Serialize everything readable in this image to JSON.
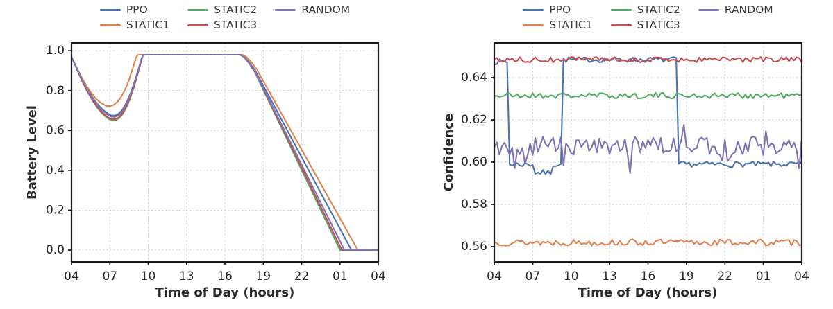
{
  "figure": {
    "background": "#ffffff",
    "spine_color": "#1a1a1a",
    "grid_color": "#d3d3dd",
    "text_color": "#2b2b2b"
  },
  "chart_data": [
    {
      "id": "battery",
      "type": "line",
      "title": "",
      "xlabel": "Time of Day (hours)",
      "ylabel": "Battery Level",
      "x_range_hours": [
        4,
        28
      ],
      "x_tick_hours": [
        4,
        7,
        10,
        13,
        16,
        19,
        22,
        25,
        28
      ],
      "x_tick_labels": [
        "04",
        "07",
        "10",
        "13",
        "16",
        "19",
        "22",
        "01",
        "04"
      ],
      "ylim": [
        -0.059,
        1.039
      ],
      "y_ticks": [
        0.0,
        0.2,
        0.4,
        0.6,
        0.8,
        1.0
      ],
      "y_tick_labels": [
        "0.0",
        "0.2",
        "0.4",
        "0.6",
        "0.8",
        "1.0"
      ],
      "grid": true,
      "legend_position": "above",
      "series": [
        {
          "name": "PPO",
          "color": "#4C72B0",
          "points": [
            [
              4,
              0.97
            ],
            [
              4.4,
              0.914
            ],
            [
              4.8,
              0.86
            ],
            [
              5.2,
              0.812
            ],
            [
              5.6,
              0.77
            ],
            [
              6.0,
              0.735
            ],
            [
              6.4,
              0.707
            ],
            [
              6.8,
              0.686
            ],
            [
              7.1,
              0.676
            ],
            [
              7.4,
              0.675
            ],
            [
              7.7,
              0.685
            ],
            [
              8.0,
              0.706
            ],
            [
              8.3,
              0.74
            ],
            [
              8.6,
              0.783
            ],
            [
              8.9,
              0.838
            ],
            [
              9.2,
              0.9
            ],
            [
              9.45,
              0.956
            ],
            [
              9.6,
              0.979
            ],
            [
              9.75,
              0.98
            ],
            [
              17.25,
              0.98
            ],
            [
              17.55,
              0.968
            ],
            [
              17.95,
              0.938
            ],
            [
              18.35,
              0.903
            ],
            [
              25.9,
              0.0
            ],
            [
              28,
              0.0
            ]
          ]
        },
        {
          "name": "STATIC1",
          "color": "#DD8452",
          "points": [
            [
              4,
              0.97
            ],
            [
              4.4,
              0.916
            ],
            [
              4.8,
              0.866
            ],
            [
              5.2,
              0.822
            ],
            [
              5.6,
              0.784
            ],
            [
              6.0,
              0.754
            ],
            [
              6.4,
              0.734
            ],
            [
              6.7,
              0.724
            ],
            [
              7.0,
              0.722
            ],
            [
              7.3,
              0.728
            ],
            [
              7.6,
              0.744
            ],
            [
              7.9,
              0.77
            ],
            [
              8.2,
              0.806
            ],
            [
              8.5,
              0.854
            ],
            [
              8.8,
              0.914
            ],
            [
              9.05,
              0.966
            ],
            [
              9.2,
              0.98
            ],
            [
              17.4,
              0.98
            ],
            [
              17.7,
              0.968
            ],
            [
              18.1,
              0.94
            ],
            [
              18.5,
              0.906
            ],
            [
              26.4,
              0.0
            ],
            [
              28,
              0.0
            ]
          ]
        },
        {
          "name": "STATIC2",
          "color": "#55A868",
          "points": [
            [
              4,
              0.97
            ],
            [
              4.4,
              0.91
            ],
            [
              4.8,
              0.852
            ],
            [
              5.2,
              0.8
            ],
            [
              5.6,
              0.755
            ],
            [
              6.0,
              0.716
            ],
            [
              6.4,
              0.685
            ],
            [
              6.8,
              0.662
            ],
            [
              7.1,
              0.651
            ],
            [
              7.4,
              0.65
            ],
            [
              7.7,
              0.66
            ],
            [
              8.0,
              0.682
            ],
            [
              8.3,
              0.716
            ],
            [
              8.6,
              0.762
            ],
            [
              8.9,
              0.82
            ],
            [
              9.2,
              0.888
            ],
            [
              9.45,
              0.948
            ],
            [
              9.6,
              0.978
            ],
            [
              9.75,
              0.98
            ],
            [
              17.2,
              0.98
            ],
            [
              17.5,
              0.968
            ],
            [
              17.9,
              0.936
            ],
            [
              18.3,
              0.898
            ],
            [
              25.0,
              0.0
            ],
            [
              28,
              0.0
            ]
          ]
        },
        {
          "name": "STATIC3",
          "color": "#C44E52",
          "points": [
            [
              4,
              0.97
            ],
            [
              4.4,
              0.911
            ],
            [
              4.8,
              0.854
            ],
            [
              5.2,
              0.803
            ],
            [
              5.6,
              0.758
            ],
            [
              6.0,
              0.72
            ],
            [
              6.4,
              0.69
            ],
            [
              6.8,
              0.668
            ],
            [
              7.1,
              0.657
            ],
            [
              7.4,
              0.656
            ],
            [
              7.7,
              0.666
            ],
            [
              8.0,
              0.688
            ],
            [
              8.3,
              0.722
            ],
            [
              8.6,
              0.768
            ],
            [
              8.9,
              0.826
            ],
            [
              9.2,
              0.892
            ],
            [
              9.45,
              0.95
            ],
            [
              9.6,
              0.978
            ],
            [
              9.75,
              0.98
            ],
            [
              17.2,
              0.98
            ],
            [
              17.5,
              0.968
            ],
            [
              17.9,
              0.937
            ],
            [
              18.3,
              0.9
            ],
            [
              25.15,
              0.0
            ],
            [
              28,
              0.0
            ]
          ]
        },
        {
          "name": "RANDOM",
          "color": "#8172B3",
          "points": [
            [
              4,
              0.97
            ],
            [
              4.4,
              0.913
            ],
            [
              4.8,
              0.858
            ],
            [
              5.2,
              0.809
            ],
            [
              5.6,
              0.766
            ],
            [
              6.0,
              0.73
            ],
            [
              6.4,
              0.701
            ],
            [
              6.8,
              0.68
            ],
            [
              7.1,
              0.669
            ],
            [
              7.4,
              0.668
            ],
            [
              7.7,
              0.678
            ],
            [
              8.0,
              0.7
            ],
            [
              8.3,
              0.734
            ],
            [
              8.6,
              0.778
            ],
            [
              8.9,
              0.834
            ],
            [
              9.2,
              0.898
            ],
            [
              9.45,
              0.954
            ],
            [
              9.6,
              0.979
            ],
            [
              9.75,
              0.98
            ],
            [
              17.2,
              0.98
            ],
            [
              17.5,
              0.968
            ],
            [
              17.9,
              0.938
            ],
            [
              18.3,
              0.902
            ],
            [
              25.35,
              0.0
            ],
            [
              28,
              0.0
            ]
          ]
        }
      ]
    },
    {
      "id": "confidence",
      "type": "line",
      "title": "",
      "xlabel": "Time of Day (hours)",
      "ylabel": "Confidence",
      "x_range_hours": [
        4,
        28
      ],
      "x_tick_hours": [
        4,
        7,
        10,
        13,
        16,
        19,
        22,
        25,
        28
      ],
      "x_tick_labels": [
        "04",
        "07",
        "10",
        "13",
        "16",
        "19",
        "22",
        "01",
        "04"
      ],
      "ylim": [
        0.5528,
        0.6564
      ],
      "y_ticks": [
        0.56,
        0.58,
        0.6,
        0.62,
        0.64
      ],
      "y_tick_labels": [
        "0.56",
        "0.58",
        "0.60",
        "0.62",
        "0.64"
      ],
      "grid": true,
      "legend_position": "above",
      "sample_step_hours": 0.2,
      "series": [
        {
          "name": "PPO",
          "color": "#4C72B0",
          "seed": 7,
          "noise_amp": 0.0013,
          "levels": [
            {
              "from": 4.0,
              "to": 5.0,
              "value": 0.6475
            },
            {
              "from": 5.0,
              "to": 7.0,
              "value": 0.599
            },
            {
              "from": 7.0,
              "to": 8.4,
              "value": 0.595
            },
            {
              "from": 8.4,
              "to": 9.2,
              "value": 0.599
            },
            {
              "from": 9.2,
              "to": 18.2,
              "value": 0.6485
            },
            {
              "from": 18.2,
              "to": 28.0,
              "value": 0.599
            }
          ]
        },
        {
          "name": "STATIC1",
          "color": "#DD8452",
          "seed": 13,
          "noise_amp": 0.0015,
          "levels": [
            {
              "from": 4.0,
              "to": 28.0,
              "value": 0.562
            }
          ]
        },
        {
          "name": "STATIC2",
          "color": "#55A868",
          "seed": 21,
          "noise_amp": 0.0014,
          "levels": [
            {
              "from": 4.0,
              "to": 28.0,
              "value": 0.6315
            }
          ]
        },
        {
          "name": "STATIC3",
          "color": "#C44E52",
          "seed": 34,
          "noise_amp": 0.0013,
          "levels": [
            {
              "from": 4.0,
              "to": 28.0,
              "value": 0.6485
            }
          ]
        },
        {
          "name": "RANDOM",
          "color": "#8172B3",
          "seed": 55,
          "noise_amp": 0.0045,
          "spike_prob": 0.18,
          "spike_amp": 0.009,
          "levels": [
            {
              "from": 4.0,
              "to": 28.0,
              "value": 0.6075
            }
          ]
        }
      ]
    }
  ]
}
